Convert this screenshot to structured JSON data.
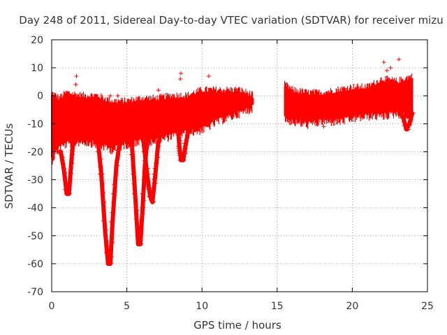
{
  "chart_data": {
    "type": "scatter",
    "title": "Day 248 of 2011, Sidereal Day-to-day VTEC variation (SDTVAR) for receiver mizu",
    "xlabel": "GPS time / hours",
    "ylabel": "SDTVAR / TECUs",
    "xlim": [
      0,
      25
    ],
    "ylim": [
      -70,
      20
    ],
    "xticks": [
      0,
      5,
      10,
      15,
      20,
      25
    ],
    "yticks": [
      -70,
      -60,
      -50,
      -40,
      -30,
      -20,
      -10,
      0,
      10,
      20
    ],
    "grid": true,
    "marker": "+",
    "series_color": "#ff0000",
    "bands": [
      {
        "name": "segment-1",
        "x": [
          0.0,
          0.5,
          1.0,
          2.0,
          3.0,
          4.0,
          5.0,
          6.0,
          7.0,
          8.0,
          9.0,
          10.0,
          11.0,
          12.0,
          12.5,
          13.0,
          13.4
        ],
        "upper": [
          0,
          -2,
          0,
          -1,
          -1,
          -3,
          -3,
          -2,
          -2,
          -1,
          -1,
          1,
          1,
          1,
          1,
          0,
          -1
        ],
        "lower": [
          -22,
          -17,
          -16,
          -15,
          -16,
          -18,
          -16,
          -15,
          -15,
          -13,
          -12,
          -11,
          -8,
          -6,
          -5,
          -4,
          -3
        ]
      },
      {
        "name": "segment-2",
        "x": [
          15.5,
          16.0,
          17.0,
          18.0,
          19.0,
          20.0,
          21.0,
          22.0,
          23.0,
          23.5,
          24.0
        ],
        "upper": [
          3,
          1,
          0,
          0,
          1,
          2,
          2,
          5,
          4,
          5,
          6
        ],
        "lower": [
          -7,
          -8,
          -9,
          -8,
          -8,
          -7,
          -6,
          -6,
          -5,
          -6,
          -7
        ]
      }
    ],
    "dips": [
      {
        "x": [
          0.45,
          0.6,
          0.8,
          1.0,
          1.15,
          1.3,
          1.45
        ],
        "y": [
          -20,
          -20,
          -26,
          -35,
          -35,
          -24,
          -15
        ]
      },
      {
        "x": [
          3.0,
          3.3,
          3.55,
          3.75,
          3.9,
          4.05,
          4.3,
          4.6
        ],
        "y": [
          -12,
          -28,
          -48,
          -60,
          -60,
          -45,
          -25,
          -14
        ]
      },
      {
        "x": [
          5.3,
          5.55,
          5.75,
          5.9,
          6.05,
          6.2,
          6.4
        ],
        "y": [
          -14,
          -35,
          -53,
          -53,
          -40,
          -25,
          -14
        ]
      },
      {
        "x": [
          6.1,
          6.35,
          6.55,
          6.7,
          6.9,
          7.1
        ],
        "y": [
          -16,
          -28,
          -36,
          -38,
          -28,
          -16
        ]
      },
      {
        "x": [
          8.4,
          8.5,
          8.6,
          8.75,
          8.9,
          9.1
        ],
        "y": [
          -12,
          -18,
          -23,
          -23,
          -18,
          -12
        ]
      },
      {
        "x": [
          22.9,
          23.2,
          23.4,
          23.6,
          23.8,
          24.0
        ],
        "y": [
          -4,
          -6,
          -8,
          -12,
          -10,
          -6
        ]
      }
    ],
    "outliers": [
      {
        "x": 1.65,
        "y": 7
      },
      {
        "x": 1.6,
        "y": 4
      },
      {
        "x": 4.4,
        "y": 0
      },
      {
        "x": 7.1,
        "y": 2
      },
      {
        "x": 8.6,
        "y": 8
      },
      {
        "x": 8.55,
        "y": 6
      },
      {
        "x": 10.45,
        "y": 7
      },
      {
        "x": 10.3,
        "y": -8
      },
      {
        "x": 15.6,
        "y": 4
      },
      {
        "x": 16.8,
        "y": -8
      },
      {
        "x": 18.1,
        "y": -11
      },
      {
        "x": 19.9,
        "y": -8
      },
      {
        "x": 22.1,
        "y": 12
      },
      {
        "x": 22.3,
        "y": 9
      },
      {
        "x": 22.55,
        "y": 10
      },
      {
        "x": 23.1,
        "y": 13
      },
      {
        "x": 23.5,
        "y": 5
      },
      {
        "x": 23.75,
        "y": -12
      },
      {
        "x": 12.3,
        "y": 2
      },
      {
        "x": 3.9,
        "y": 0
      }
    ]
  }
}
